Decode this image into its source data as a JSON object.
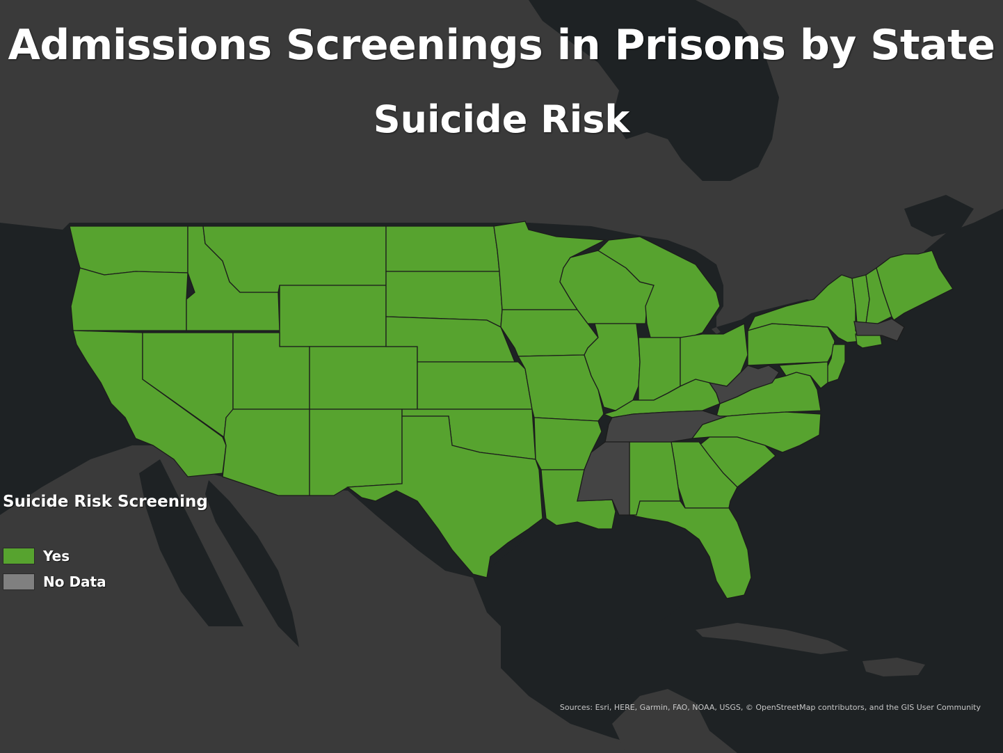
{
  "map": {
    "title": "Admissions Screenings in Prisons by State",
    "subtitle": "Suicide Risk",
    "attribution": "Sources: Esri, HERE, Garmin, FAO, NOAA, USGS, © OpenStreetMap contributors, and the GIS User Community",
    "colors": {
      "ocean": "#1e2224",
      "land": "#3a3a3a",
      "land_dark": "#303030",
      "yes": "#57a32f",
      "no_data": "#444444",
      "border": "#1c1c1c"
    }
  },
  "legend": {
    "title": "Suicide Risk Screening",
    "items": [
      {
        "label": "Yes",
        "color": "#57a32f"
      },
      {
        "label": "No Data",
        "color": "#808080"
      }
    ]
  },
  "states_no_data": [
    "Massachusetts",
    "West Virginia",
    "Tennessee",
    "Mississippi"
  ],
  "states_yes_note": "All other contiguous states"
}
